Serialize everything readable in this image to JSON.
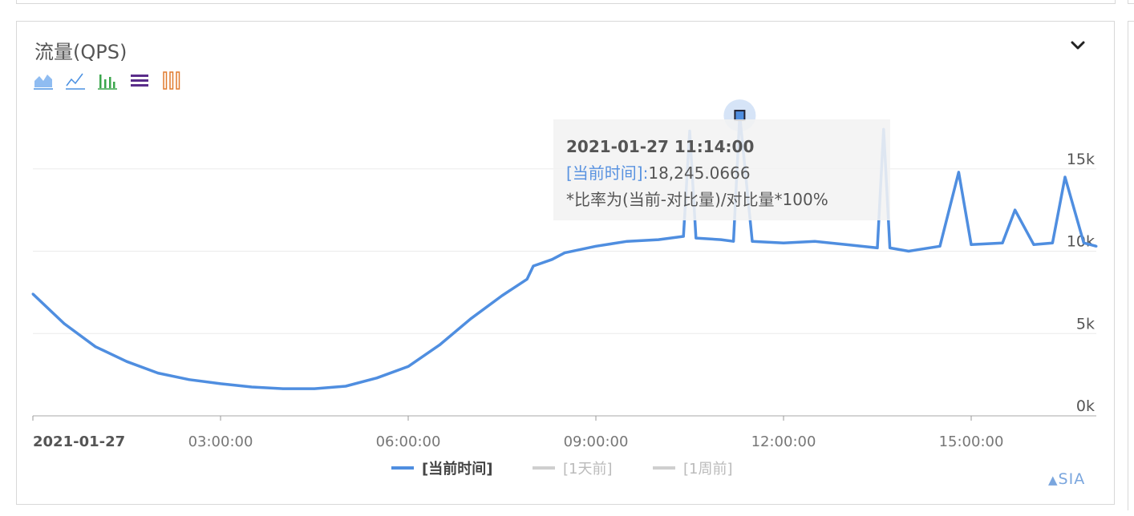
{
  "panel": {
    "title": "流量(QPS)",
    "collapse_icon": "chevron-down-icon"
  },
  "toolbar": {
    "tools": [
      {
        "name": "area-chart-icon",
        "color": "#4a90e2"
      },
      {
        "name": "line-chart-icon",
        "color": "#4a90e2"
      },
      {
        "name": "bar-chart-icon",
        "color": "#3aa64b"
      },
      {
        "name": "stack-chart-icon",
        "color": "#6b3fa0"
      },
      {
        "name": "tiled-chart-icon",
        "color": "#e07a2e"
      }
    ]
  },
  "tooltip": {
    "time": "2021-01-27 11:14:00",
    "series_label": "[当前时间]:",
    "value": "18,245.0666",
    "note": "*比率为(当前-对比量)/对比量*100%"
  },
  "brand": "SIA",
  "colors": {
    "current": "#4f8ee0",
    "compare": "#cfcfcf",
    "grid": "#ebebeb",
    "axis": "#999999"
  },
  "chart_data": {
    "type": "line",
    "x_ticks": [
      "2021-01-27",
      "03:00:00",
      "06:00:00",
      "09:00:00",
      "12:00:00",
      "15:00:00"
    ],
    "y_ticks": [
      "0k",
      "5k",
      "10k",
      "15k"
    ],
    "ylim": [
      0,
      20000
    ],
    "xlim_hours": [
      0,
      17
    ],
    "series": [
      {
        "name": "[当前时间]",
        "color": "#4f8ee0",
        "x_hours": [
          0,
          0.5,
          1,
          1.5,
          2,
          2.5,
          3,
          3.5,
          4,
          4.5,
          5,
          5.5,
          6,
          6.5,
          7,
          7.5,
          7.9,
          8.0,
          8.3,
          8.5,
          9,
          9.5,
          10,
          10.4,
          10.5,
          10.6,
          11,
          11.2,
          11.3,
          11.5,
          12,
          12.5,
          13,
          13.5,
          13.6,
          13.7,
          14,
          14.5,
          14.8,
          15,
          15.5,
          15.7,
          16,
          16.3,
          16.5,
          16.8,
          17
        ],
        "values": [
          7400,
          5600,
          4200,
          3300,
          2600,
          2200,
          1950,
          1750,
          1650,
          1650,
          1800,
          2300,
          3000,
          4300,
          5900,
          7300,
          8300,
          9100,
          9500,
          9900,
          10300,
          10600,
          10700,
          10900,
          17300,
          10800,
          10700,
          10600,
          18245,
          10600,
          10500,
          10600,
          10400,
          10200,
          17400,
          10200,
          10000,
          10300,
          14800,
          10400,
          10500,
          12500,
          10400,
          10500,
          14500,
          10500,
          10300
        ]
      },
      {
        "name": "[1天前]",
        "color": "#cfcfcf",
        "x_hours": [],
        "values": []
      },
      {
        "name": "[1周前]",
        "color": "#cfcfcf",
        "x_hours": [],
        "values": []
      }
    ]
  }
}
